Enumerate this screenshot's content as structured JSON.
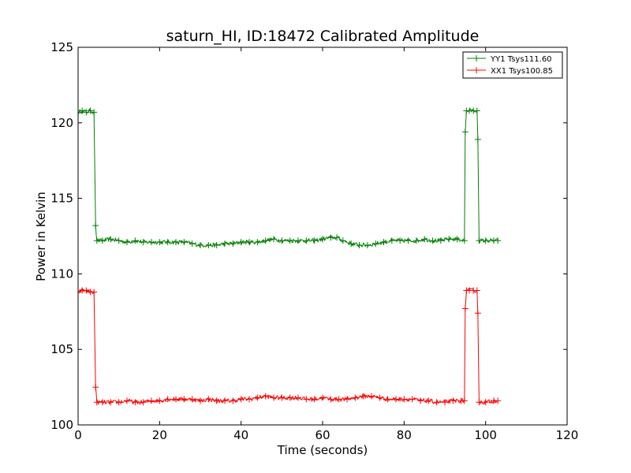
{
  "chart_data": {
    "type": "line",
    "title": "saturn_HI, ID:18472 Calibrated Amplitude",
    "xlabel": "Time (seconds)",
    "ylabel": "Power in Kelvin",
    "xlim": [
      0,
      120
    ],
    "ylim": [
      100,
      125
    ],
    "xticks": [
      0,
      20,
      40,
      60,
      80,
      100,
      120
    ],
    "yticks": [
      100,
      105,
      110,
      115,
      120,
      125
    ],
    "grid": false,
    "legend_position": "top-right",
    "series": [
      {
        "name": "YY1 Tsys111.60",
        "color": "#008000",
        "marker": "+",
        "points": [
          [
            0.0,
            120.7
          ],
          [
            1.0,
            120.8
          ],
          [
            2.0,
            120.7
          ],
          [
            3.0,
            120.8
          ],
          [
            3.9,
            120.7
          ],
          [
            4.3,
            113.2
          ],
          [
            4.6,
            112.2
          ],
          [
            6.0,
            112.2
          ],
          [
            8.0,
            112.3
          ],
          [
            10.0,
            112.2
          ],
          [
            12.0,
            112.1
          ],
          [
            14.0,
            112.2
          ],
          [
            16.0,
            112.1
          ],
          [
            18.0,
            112.1
          ],
          [
            20.0,
            112.1
          ],
          [
            22.0,
            112.1
          ],
          [
            24.0,
            112.1
          ],
          [
            26.0,
            112.1
          ],
          [
            28.0,
            112.0
          ],
          [
            30.0,
            111.9
          ],
          [
            32.0,
            111.9
          ],
          [
            34.0,
            111.9
          ],
          [
            36.0,
            112.0
          ],
          [
            38.0,
            112.0
          ],
          [
            40.0,
            112.1
          ],
          [
            42.0,
            112.1
          ],
          [
            44.0,
            112.1
          ],
          [
            46.0,
            112.2
          ],
          [
            48.0,
            112.3
          ],
          [
            50.0,
            112.2
          ],
          [
            52.0,
            112.2
          ],
          [
            54.0,
            112.2
          ],
          [
            56.0,
            112.2
          ],
          [
            58.0,
            112.2
          ],
          [
            60.0,
            112.3
          ],
          [
            62.0,
            112.4
          ],
          [
            63.5,
            112.4
          ],
          [
            65.0,
            112.2
          ],
          [
            67.0,
            112.0
          ],
          [
            69.0,
            111.9
          ],
          [
            71.0,
            111.9
          ],
          [
            73.0,
            112.0
          ],
          [
            75.0,
            112.1
          ],
          [
            77.0,
            112.2
          ],
          [
            79.0,
            112.2
          ],
          [
            81.0,
            112.2
          ],
          [
            83.0,
            112.2
          ],
          [
            85.0,
            112.3
          ],
          [
            87.0,
            112.2
          ],
          [
            89.0,
            112.2
          ],
          [
            91.0,
            112.3
          ],
          [
            93.0,
            112.3
          ],
          [
            94.8,
            112.2
          ],
          [
            95.0,
            119.4
          ],
          [
            95.3,
            120.8
          ],
          [
            96.0,
            120.8
          ],
          [
            97.0,
            120.8
          ],
          [
            97.9,
            120.8
          ],
          [
            98.1,
            118.9
          ],
          [
            98.4,
            112.2
          ],
          [
            100.0,
            112.2
          ],
          [
            102.0,
            112.2
          ],
          [
            103.0,
            112.2
          ]
        ]
      },
      {
        "name": "XX1 Tsys100.85",
        "color": "#ff0000",
        "marker": "+",
        "points": [
          [
            0.0,
            108.8
          ],
          [
            1.0,
            108.9
          ],
          [
            2.0,
            108.9
          ],
          [
            3.0,
            108.8
          ],
          [
            3.9,
            108.8
          ],
          [
            4.3,
            102.5
          ],
          [
            4.6,
            101.5
          ],
          [
            6.0,
            101.5
          ],
          [
            8.0,
            101.5
          ],
          [
            10.0,
            101.5
          ],
          [
            12.0,
            101.6
          ],
          [
            14.0,
            101.5
          ],
          [
            16.0,
            101.5
          ],
          [
            18.0,
            101.6
          ],
          [
            20.0,
            101.6
          ],
          [
            22.0,
            101.7
          ],
          [
            24.0,
            101.7
          ],
          [
            26.0,
            101.7
          ],
          [
            28.0,
            101.7
          ],
          [
            30.0,
            101.6
          ],
          [
            32.0,
            101.7
          ],
          [
            34.0,
            101.6
          ],
          [
            36.0,
            101.6
          ],
          [
            38.0,
            101.6
          ],
          [
            40.0,
            101.7
          ],
          [
            42.0,
            101.7
          ],
          [
            44.0,
            101.8
          ],
          [
            46.0,
            101.9
          ],
          [
            48.0,
            101.8
          ],
          [
            50.0,
            101.8
          ],
          [
            52.0,
            101.8
          ],
          [
            54.0,
            101.8
          ],
          [
            56.0,
            101.7
          ],
          [
            58.0,
            101.7
          ],
          [
            60.0,
            101.8
          ],
          [
            62.0,
            101.7
          ],
          [
            64.0,
            101.7
          ],
          [
            66.0,
            101.7
          ],
          [
            68.0,
            101.8
          ],
          [
            70.0,
            101.9
          ],
          [
            72.0,
            101.9
          ],
          [
            74.0,
            101.8
          ],
          [
            76.0,
            101.7
          ],
          [
            78.0,
            101.7
          ],
          [
            80.0,
            101.7
          ],
          [
            82.0,
            101.7
          ],
          [
            84.0,
            101.6
          ],
          [
            86.0,
            101.6
          ],
          [
            88.0,
            101.5
          ],
          [
            90.0,
            101.5
          ],
          [
            92.0,
            101.6
          ],
          [
            94.0,
            101.6
          ],
          [
            94.8,
            101.6
          ],
          [
            95.0,
            107.7
          ],
          [
            95.3,
            108.9
          ],
          [
            96.0,
            108.9
          ],
          [
            97.0,
            108.9
          ],
          [
            97.9,
            108.9
          ],
          [
            98.1,
            107.4
          ],
          [
            98.4,
            101.5
          ],
          [
            100.0,
            101.5
          ],
          [
            102.0,
            101.6
          ],
          [
            103.0,
            101.6
          ]
        ]
      }
    ]
  }
}
